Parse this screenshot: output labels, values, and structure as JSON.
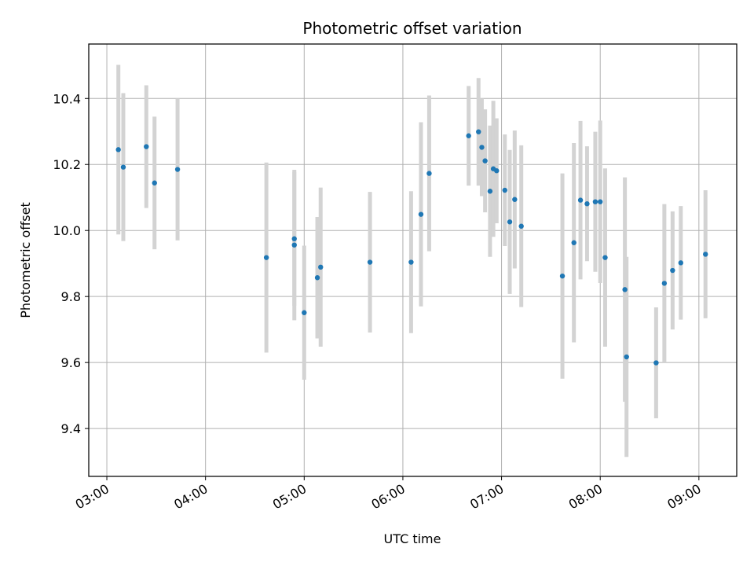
{
  "chart_data": {
    "type": "scatter",
    "title": "Photometric offset variation",
    "xlabel": "UTC time",
    "ylabel": "Photometric offset",
    "x_ticks": [
      "03:00",
      "04:00",
      "05:00",
      "06:00",
      "07:00",
      "08:00",
      "09:00"
    ],
    "y_ticks": [
      "9.4",
      "9.6",
      "9.8",
      "10.0",
      "10.2",
      "10.4"
    ],
    "xlim": [
      "02:49",
      "09:23"
    ],
    "ylim": [
      9.255,
      10.565
    ],
    "grid": true,
    "marker_color": "#1f77b4",
    "errorbar_color": "#d3d3d3",
    "series": [
      {
        "points": [
          {
            "time": "03:07",
            "y": 10.245,
            "err": 0.257
          },
          {
            "time": "03:10",
            "y": 10.192,
            "err": 0.224
          },
          {
            "time": "03:24",
            "y": 10.254,
            "err": 0.186
          },
          {
            "time": "03:29",
            "y": 10.144,
            "err": 0.201
          },
          {
            "time": "03:43",
            "y": 10.185,
            "err": 0.215
          },
          {
            "time": "04:37",
            "y": 9.918,
            "err": 0.288
          },
          {
            "time": "04:54",
            "y": 9.975,
            "err": 0.203
          },
          {
            "time": "04:54",
            "y": 9.956,
            "err": 0.228
          },
          {
            "time": "05:00",
            "y": 9.751,
            "err": 0.203
          },
          {
            "time": "05:08",
            "y": 9.857,
            "err": 0.184
          },
          {
            "time": "05:10",
            "y": 9.889,
            "err": 0.241
          },
          {
            "time": "05:40",
            "y": 9.904,
            "err": 0.213
          },
          {
            "time": "06:05",
            "y": 9.904,
            "err": 0.215
          },
          {
            "time": "06:11",
            "y": 10.049,
            "err": 0.279
          },
          {
            "time": "06:16",
            "y": 10.173,
            "err": 0.236
          },
          {
            "time": "06:40",
            "y": 10.287,
            "err": 0.151
          },
          {
            "time": "06:46",
            "y": 10.299,
            "err": 0.163
          },
          {
            "time": "06:48",
            "y": 10.252,
            "err": 0.148
          },
          {
            "time": "06:50",
            "y": 10.211,
            "err": 0.156
          },
          {
            "time": "06:53",
            "y": 10.119,
            "err": 0.199
          },
          {
            "time": "06:55",
            "y": 10.187,
            "err": 0.206
          },
          {
            "time": "06:57",
            "y": 10.181,
            "err": 0.159
          },
          {
            "time": "07:02",
            "y": 10.122,
            "err": 0.169
          },
          {
            "time": "07:05",
            "y": 10.026,
            "err": 0.218
          },
          {
            "time": "07:08",
            "y": 10.094,
            "err": 0.209
          },
          {
            "time": "07:12",
            "y": 10.013,
            "err": 0.245
          },
          {
            "time": "07:37",
            "y": 9.862,
            "err": 0.311
          },
          {
            "time": "07:44",
            "y": 9.963,
            "err": 0.302
          },
          {
            "time": "07:48",
            "y": 10.092,
            "err": 0.24
          },
          {
            "time": "07:52",
            "y": 10.081,
            "err": 0.174
          },
          {
            "time": "07:57",
            "y": 10.087,
            "err": 0.212
          },
          {
            "time": "08:00",
            "y": 10.087,
            "err": 0.246
          },
          {
            "time": "08:03",
            "y": 9.918,
            "err": 0.27
          },
          {
            "time": "08:15",
            "y": 9.821,
            "err": 0.34
          },
          {
            "time": "08:16",
            "y": 9.617,
            "err": 0.303
          },
          {
            "time": "08:34",
            "y": 9.599,
            "err": 0.168
          },
          {
            "time": "08:39",
            "y": 9.84,
            "err": 0.24
          },
          {
            "time": "08:44",
            "y": 9.879,
            "err": 0.179
          },
          {
            "time": "08:49",
            "y": 9.902,
            "err": 0.172
          },
          {
            "time": "09:04",
            "y": 9.928,
            "err": 0.194
          }
        ]
      }
    ]
  }
}
